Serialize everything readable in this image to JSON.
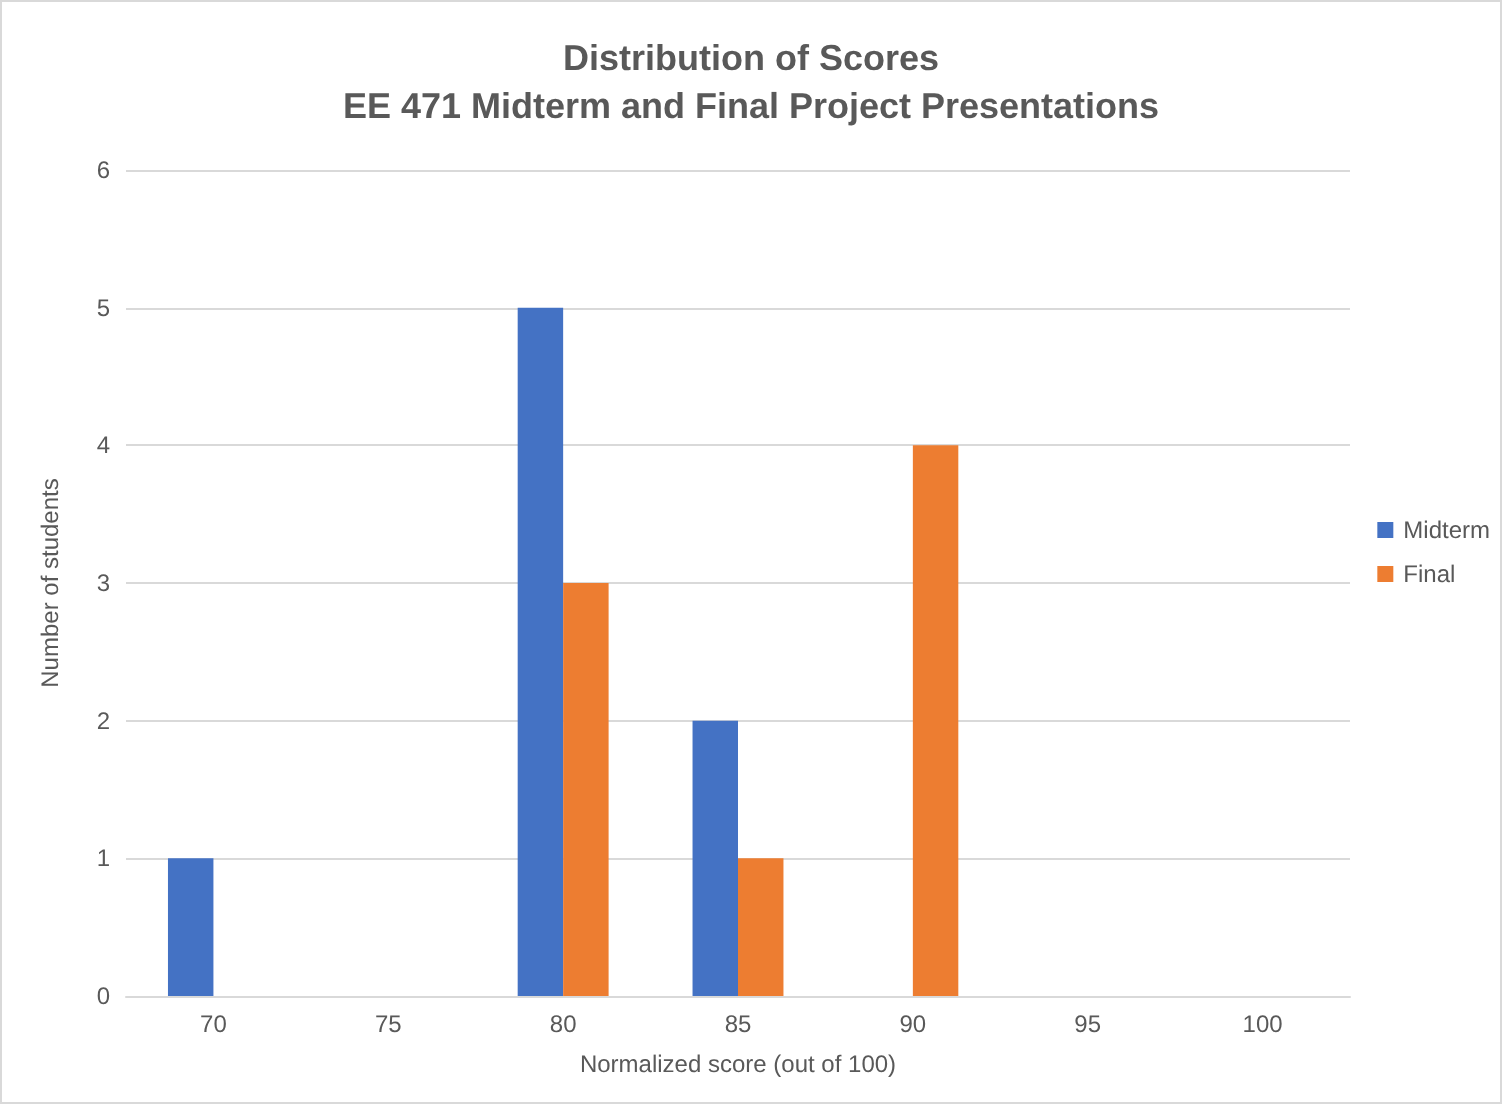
{
  "chart_data": {
    "type": "bar",
    "title": "Distribution of Scores",
    "subtitle": "EE 471 Midterm and Final Project Presentations",
    "xlabel": "Normalized score (out of 100)",
    "ylabel": "Number of students",
    "categories": [
      "70",
      "75",
      "80",
      "85",
      "90",
      "95",
      "100"
    ],
    "series": [
      {
        "name": "Midterm",
        "color": "#4472c4",
        "values": [
          1,
          0,
          5,
          2,
          0,
          0,
          0
        ]
      },
      {
        "name": "Final",
        "color": "#ed7d31",
        "values": [
          0,
          0,
          3,
          1,
          4,
          0,
          0
        ]
      }
    ],
    "ylim": [
      0,
      6
    ],
    "yticks": [
      0,
      1,
      2,
      3,
      4,
      5,
      6
    ],
    "grid": "y",
    "legend": "right"
  }
}
